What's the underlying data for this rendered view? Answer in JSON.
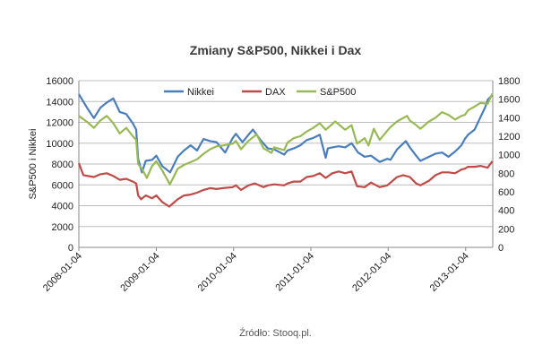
{
  "chart_data": {
    "type": "line",
    "title": "Zmiany S&P500, Nikkei i Dax",
    "ylabel": "S&P500 i Nikkei",
    "x_ticks": [
      "2008-01-04",
      "2009-01-04",
      "2010-01-04",
      "2011-01-04",
      "2012-01-04",
      "2013-01-04"
    ],
    "y_left": {
      "lim": [
        0,
        16000
      ],
      "ticks": [
        "0",
        "2000",
        "4000",
        "6000",
        "8000",
        "10000",
        "12000",
        "14000",
        "16000"
      ]
    },
    "y_right": {
      "lim": [
        0,
        1800
      ],
      "ticks": [
        "0",
        "200",
        "400",
        "600",
        "800",
        "1000",
        "1200",
        "1400",
        "1600",
        "1800"
      ]
    },
    "grid": true,
    "legend_position": "top",
    "series": [
      {
        "name": "Nikkei",
        "color": "#4a7ebb",
        "axis": "left",
        "points": [
          [
            "2008-01-04",
            14700
          ],
          [
            "2008-02-15",
            13300
          ],
          [
            "2008-03-15",
            12400
          ],
          [
            "2008-04-15",
            13400
          ],
          [
            "2008-05-15",
            13900
          ],
          [
            "2008-06-15",
            14300
          ],
          [
            "2008-07-15",
            13000
          ],
          [
            "2008-08-15",
            12800
          ],
          [
            "2008-09-15",
            11900
          ],
          [
            "2008-10-01",
            11300
          ],
          [
            "2008-10-10",
            8500
          ],
          [
            "2008-10-28",
            7200
          ],
          [
            "2008-11-15",
            8300
          ],
          [
            "2008-12-15",
            8400
          ],
          [
            "2009-01-04",
            8800
          ],
          [
            "2009-02-01",
            7800
          ],
          [
            "2009-03-10",
            7200
          ],
          [
            "2009-04-15",
            8700
          ],
          [
            "2009-05-15",
            9300
          ],
          [
            "2009-06-15",
            9800
          ],
          [
            "2009-07-15",
            9300
          ],
          [
            "2009-08-15",
            10400
          ],
          [
            "2009-09-15",
            10200
          ],
          [
            "2009-10-15",
            10100
          ],
          [
            "2009-11-25",
            9100
          ],
          [
            "2009-12-31",
            10500
          ],
          [
            "2010-01-15",
            10900
          ],
          [
            "2010-02-15",
            10100
          ],
          [
            "2010-03-15",
            10800
          ],
          [
            "2010-04-05",
            11300
          ],
          [
            "2010-05-15",
            10200
          ],
          [
            "2010-06-15",
            9500
          ],
          [
            "2010-07-15",
            9400
          ],
          [
            "2010-08-31",
            8900
          ],
          [
            "2010-09-15",
            9300
          ],
          [
            "2010-10-15",
            9500
          ],
          [
            "2010-11-15",
            9800
          ],
          [
            "2010-12-15",
            10300
          ],
          [
            "2011-01-15",
            10500
          ],
          [
            "2011-02-15",
            10800
          ],
          [
            "2011-03-15",
            8600
          ],
          [
            "2011-03-25",
            9500
          ],
          [
            "2011-04-15",
            9600
          ],
          [
            "2011-05-15",
            9700
          ],
          [
            "2011-06-15",
            9600
          ],
          [
            "2011-07-15",
            10000
          ],
          [
            "2011-08-15",
            9100
          ],
          [
            "2011-09-15",
            8700
          ],
          [
            "2011-10-15",
            8800
          ],
          [
            "2011-11-25",
            8200
          ],
          [
            "2011-12-31",
            8500
          ],
          [
            "2012-01-15",
            8400
          ],
          [
            "2012-02-15",
            9400
          ],
          [
            "2012-03-27",
            10200
          ],
          [
            "2012-04-15",
            9600
          ],
          [
            "2012-05-15",
            8800
          ],
          [
            "2012-06-04",
            8300
          ],
          [
            "2012-07-15",
            8700
          ],
          [
            "2012-08-15",
            9000
          ],
          [
            "2012-09-15",
            9100
          ],
          [
            "2012-10-15",
            8700
          ],
          [
            "2012-11-15",
            9200
          ],
          [
            "2012-12-15",
            9800
          ],
          [
            "2012-12-31",
            10400
          ],
          [
            "2013-01-15",
            10800
          ],
          [
            "2013-02-15",
            11300
          ],
          [
            "2013-03-15",
            12500
          ],
          [
            "2013-04-05",
            13400
          ],
          [
            "2013-04-19",
            14200
          ],
          [
            "2013-05-10",
            14600
          ]
        ]
      },
      {
        "name": "DAX",
        "color": "#be4b48",
        "axis": "right",
        "points": [
          [
            "2008-01-04",
            910
          ],
          [
            "2008-01-25",
            780
          ],
          [
            "2008-03-15",
            760
          ],
          [
            "2008-04-15",
            790
          ],
          [
            "2008-05-15",
            800
          ],
          [
            "2008-06-15",
            770
          ],
          [
            "2008-07-15",
            730
          ],
          [
            "2008-08-15",
            740
          ],
          [
            "2008-09-15",
            710
          ],
          [
            "2008-10-01",
            690
          ],
          [
            "2008-10-10",
            560
          ],
          [
            "2008-10-24",
            520
          ],
          [
            "2008-11-15",
            560
          ],
          [
            "2008-12-15",
            530
          ],
          [
            "2009-01-04",
            560
          ],
          [
            "2009-02-01",
            490
          ],
          [
            "2009-03-06",
            440
          ],
          [
            "2009-04-15",
            520
          ],
          [
            "2009-05-15",
            560
          ],
          [
            "2009-06-15",
            570
          ],
          [
            "2009-07-15",
            590
          ],
          [
            "2009-08-15",
            620
          ],
          [
            "2009-09-15",
            640
          ],
          [
            "2009-10-15",
            630
          ],
          [
            "2009-11-15",
            640
          ],
          [
            "2009-12-31",
            650
          ],
          [
            "2010-01-15",
            670
          ],
          [
            "2010-02-08",
            620
          ],
          [
            "2010-03-15",
            670
          ],
          [
            "2010-04-15",
            690
          ],
          [
            "2010-05-25",
            650
          ],
          [
            "2010-06-15",
            670
          ],
          [
            "2010-07-15",
            680
          ],
          [
            "2010-08-31",
            670
          ],
          [
            "2010-09-15",
            690
          ],
          [
            "2010-10-15",
            710
          ],
          [
            "2010-11-15",
            710
          ],
          [
            "2010-12-15",
            760
          ],
          [
            "2011-01-15",
            770
          ],
          [
            "2011-02-15",
            800
          ],
          [
            "2011-03-15",
            750
          ],
          [
            "2011-04-15",
            800
          ],
          [
            "2011-05-15",
            820
          ],
          [
            "2011-06-15",
            800
          ],
          [
            "2011-07-15",
            820
          ],
          [
            "2011-08-10",
            660
          ],
          [
            "2011-09-15",
            650
          ],
          [
            "2011-10-15",
            700
          ],
          [
            "2011-11-25",
            650
          ],
          [
            "2011-12-31",
            670
          ],
          [
            "2012-01-15",
            700
          ],
          [
            "2012-02-15",
            760
          ],
          [
            "2012-03-15",
            780
          ],
          [
            "2012-04-15",
            760
          ],
          [
            "2012-05-15",
            690
          ],
          [
            "2012-06-04",
            670
          ],
          [
            "2012-07-15",
            720
          ],
          [
            "2012-08-15",
            780
          ],
          [
            "2012-09-15",
            810
          ],
          [
            "2012-10-15",
            810
          ],
          [
            "2012-11-15",
            800
          ],
          [
            "2012-12-15",
            840
          ],
          [
            "2012-12-31",
            850
          ],
          [
            "2013-01-15",
            870
          ],
          [
            "2013-02-15",
            870
          ],
          [
            "2013-03-15",
            880
          ],
          [
            "2013-04-18",
            860
          ],
          [
            "2013-05-10",
            930
          ]
        ]
      },
      {
        "name": "S&P500",
        "color": "#98b954",
        "axis": "right",
        "points": [
          [
            "2008-01-04",
            1420
          ],
          [
            "2008-02-15",
            1350
          ],
          [
            "2008-03-15",
            1290
          ],
          [
            "2008-04-15",
            1370
          ],
          [
            "2008-05-15",
            1420
          ],
          [
            "2008-06-15",
            1340
          ],
          [
            "2008-07-15",
            1230
          ],
          [
            "2008-08-15",
            1290
          ],
          [
            "2008-09-15",
            1200
          ],
          [
            "2008-10-01",
            1160
          ],
          [
            "2008-10-10",
            900
          ],
          [
            "2008-10-28",
            850
          ],
          [
            "2008-11-20",
            750
          ],
          [
            "2008-12-15",
            880
          ],
          [
            "2009-01-04",
            930
          ],
          [
            "2009-02-01",
            830
          ],
          [
            "2009-03-09",
            680
          ],
          [
            "2009-04-15",
            850
          ],
          [
            "2009-05-15",
            890
          ],
          [
            "2009-06-15",
            920
          ],
          [
            "2009-07-15",
            950
          ],
          [
            "2009-08-15",
            1010
          ],
          [
            "2009-09-15",
            1060
          ],
          [
            "2009-10-15",
            1090
          ],
          [
            "2009-11-15",
            1100
          ],
          [
            "2009-12-31",
            1120
          ],
          [
            "2010-01-15",
            1150
          ],
          [
            "2010-02-08",
            1060
          ],
          [
            "2010-03-15",
            1150
          ],
          [
            "2010-04-23",
            1220
          ],
          [
            "2010-05-25",
            1070
          ],
          [
            "2010-07-02",
            1020
          ],
          [
            "2010-07-15",
            1080
          ],
          [
            "2010-08-31",
            1050
          ],
          [
            "2010-09-15",
            1130
          ],
          [
            "2010-10-15",
            1180
          ],
          [
            "2010-11-15",
            1200
          ],
          [
            "2010-12-15",
            1250
          ],
          [
            "2011-01-15",
            1290
          ],
          [
            "2011-02-15",
            1340
          ],
          [
            "2011-03-15",
            1270
          ],
          [
            "2011-04-29",
            1360
          ],
          [
            "2011-05-15",
            1330
          ],
          [
            "2011-06-15",
            1270
          ],
          [
            "2011-07-15",
            1320
          ],
          [
            "2011-08-10",
            1120
          ],
          [
            "2011-09-15",
            1180
          ],
          [
            "2011-10-03",
            1100
          ],
          [
            "2011-10-28",
            1280
          ],
          [
            "2011-11-25",
            1160
          ],
          [
            "2011-12-31",
            1260
          ],
          [
            "2012-01-15",
            1300
          ],
          [
            "2012-02-15",
            1360
          ],
          [
            "2012-04-02",
            1420
          ],
          [
            "2012-04-15",
            1370
          ],
          [
            "2012-05-15",
            1320
          ],
          [
            "2012-06-04",
            1280
          ],
          [
            "2012-07-15",
            1360
          ],
          [
            "2012-08-15",
            1400
          ],
          [
            "2012-09-14",
            1460
          ],
          [
            "2012-10-15",
            1430
          ],
          [
            "2012-11-15",
            1380
          ],
          [
            "2012-12-15",
            1420
          ],
          [
            "2012-12-31",
            1430
          ],
          [
            "2013-01-15",
            1480
          ],
          [
            "2013-02-15",
            1520
          ],
          [
            "2013-03-15",
            1560
          ],
          [
            "2013-04-18",
            1550
          ],
          [
            "2013-05-10",
            1660
          ]
        ]
      }
    ]
  },
  "source": "Źródło: Stooq.pl."
}
